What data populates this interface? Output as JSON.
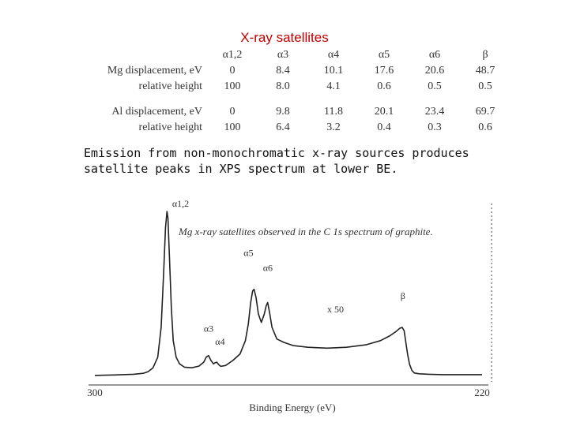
{
  "slide": {
    "title": "X-ray satellites",
    "emission_text": "Emission from non-monochromatic x-ray sources produces satellite peaks in XPS spectrum at lower BE."
  },
  "satellite_table": {
    "headers": [
      "",
      "α1,2",
      "α3",
      "α4",
      "α5",
      "α6",
      "β"
    ],
    "rows": [
      [
        "Mg displacement, eV",
        "0",
        "8.4",
        "10.1",
        "17.6",
        "20.6",
        "48.7"
      ],
      [
        "relative height",
        "100",
        "8.0",
        "4.1",
        "0.6",
        "0.5",
        "0.5"
      ],
      [
        "Al displacement, eV",
        "0",
        "9.8",
        "11.8",
        "20.1",
        "23.4",
        "69.7"
      ],
      [
        "relative height",
        "100",
        "6.4",
        "3.2",
        "0.4",
        "0.3",
        "0.6"
      ]
    ]
  },
  "chart_data": {
    "type": "line",
    "title": "Mg x-ray satellites observed in the C 1s spectrum of graphite.",
    "xlabel": "Binding Energy (eV)",
    "ylabel": "",
    "xlim": [
      300,
      220
    ],
    "x_tick_labels": [
      "300",
      "220"
    ],
    "grid": false,
    "legend": "none",
    "annotations": [
      {
        "label": "α1,2",
        "x": 285,
        "y": 100
      },
      {
        "label": "α3",
        "x": 276.5,
        "y": 13
      },
      {
        "label": "α4",
        "x": 274.8,
        "y": 9
      },
      {
        "label": "α5",
        "x": 267.3,
        "y": 53
      },
      {
        "label": "α6",
        "x": 264.3,
        "y": 45
      },
      {
        "label": "β",
        "x": 236.2,
        "y": 30
      }
    ],
    "scale_note": "x 50",
    "series": [
      {
        "x": [
          300,
          296,
          292,
          290,
          289,
          288,
          287,
          286.3,
          285.8,
          285.4,
          285.1,
          284.9,
          284.6,
          284.2,
          283.8,
          283.2,
          282.5,
          281.5,
          280,
          278.5,
          277.5,
          277,
          276.5,
          276,
          275.5,
          275.1,
          274.8,
          274.4,
          274,
          273,
          271.5,
          270,
          268.9,
          268.3,
          267.8,
          267.4,
          267.1,
          266.7,
          266.2,
          265.6,
          265,
          264.6,
          264.3,
          263.9,
          263.4,
          262.4,
          261,
          259,
          256,
          252,
          248,
          244,
          241,
          239,
          237.8,
          237,
          236.5,
          236.1,
          235.8,
          235.4,
          235,
          234.5,
          234,
          233,
          231,
          228,
          224,
          220
        ],
        "y": [
          1.0,
          1.3,
          1.7,
          2.3,
          3.3,
          5.5,
          12,
          30,
          62,
          90,
          100,
          96,
          74,
          42,
          22,
          12,
          8,
          6,
          5.6,
          6.6,
          9,
          12,
          13,
          10,
          8,
          8.7,
          9,
          7.5,
          6.5,
          7,
          10,
          14,
          22,
          32,
          45,
          52,
          53,
          48,
          38,
          33,
          38,
          43,
          45,
          39,
          30,
          23,
          21,
          19,
          18,
          17.5,
          18,
          19.5,
          22,
          25,
          27.5,
          29.5,
          30,
          28,
          22,
          14,
          8,
          4,
          2.5,
          2,
          1.7,
          1.5,
          1.5,
          1.5
        ]
      }
    ]
  }
}
